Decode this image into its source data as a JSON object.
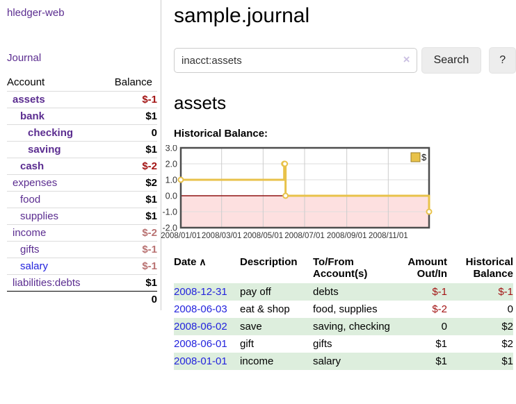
{
  "app": {
    "title": "hledger-web",
    "nav_journal": "Journal"
  },
  "sidebar": {
    "headers": {
      "account": "Account",
      "balance": "Balance"
    },
    "accounts": [
      {
        "name": "assets",
        "indent": 1,
        "bold": true,
        "balance": "$-1",
        "balance_style": "neg-strong"
      },
      {
        "name": "bank",
        "indent": 2,
        "bold": true,
        "balance": "$1",
        "balance_style": "pos"
      },
      {
        "name": "checking",
        "indent": 3,
        "bold": true,
        "balance": "0",
        "balance_style": "pos"
      },
      {
        "name": "saving",
        "indent": 3,
        "bold": true,
        "balance": "$1",
        "balance_style": "pos"
      },
      {
        "name": "cash",
        "indent": 2,
        "bold": true,
        "balance": "$-2",
        "balance_style": "neg-strong"
      },
      {
        "name": "expenses",
        "indent": 1,
        "bold": false,
        "balance": "$2",
        "balance_style": "pos"
      },
      {
        "name": "food",
        "indent": 2,
        "bold": false,
        "balance": "$1",
        "balance_style": "pos"
      },
      {
        "name": "supplies",
        "indent": 2,
        "bold": false,
        "balance": "$1",
        "balance_style": "pos"
      },
      {
        "name": "income",
        "indent": 1,
        "bold": false,
        "balance": "$-2",
        "balance_style": "neg-soft"
      },
      {
        "name": "gifts",
        "indent": 2,
        "bold": false,
        "balance": "$-1",
        "balance_style": "neg-soft"
      },
      {
        "name": "salary",
        "indent": 2,
        "bold": false,
        "link_style": "unvisited",
        "balance": "$-1",
        "balance_style": "neg-soft"
      },
      {
        "name": "liabilities:debts",
        "indent": 1,
        "bold": false,
        "balance": "$1",
        "balance_style": "pos"
      }
    ],
    "total": "0"
  },
  "header": {
    "title": "sample.journal"
  },
  "search": {
    "value": "inacct:assets",
    "clear_icon": "×",
    "button_label": "Search",
    "help_label": "?"
  },
  "account_page": {
    "heading": "assets",
    "chart_label": "Historical Balance:"
  },
  "chart_data": {
    "type": "line",
    "title": "Historical Balance:",
    "legend_position": "top-right",
    "grid": true,
    "xlim": [
      "2008-01-01",
      "2008-12-31"
    ],
    "ylim": [
      -2,
      3
    ],
    "y_ticks": [
      3,
      2,
      1,
      0,
      -1,
      -2
    ],
    "x_ticks": [
      "2008/01/01",
      "2008/03/01",
      "2008/05/01",
      "2008/07/01",
      "2008/09/01",
      "2008/11/01"
    ],
    "series": [
      {
        "name": "$",
        "color": "#e8c24a",
        "points": [
          [
            "2008-01-01",
            1
          ],
          [
            "2008-06-01",
            2
          ],
          [
            "2008-06-02",
            2
          ],
          [
            "2008-06-03",
            0
          ],
          [
            "2008-12-31",
            -1
          ]
        ]
      }
    ],
    "colors": {
      "negative_region": "#fde0e0",
      "zero_line": "#8e1313",
      "grid_h": "#dedede",
      "grid_v": "#cccccc",
      "border": "#4d4d4d"
    }
  },
  "register": {
    "headers": [
      {
        "line1": "Date",
        "line2": "",
        "align": "left",
        "cls": "c-date",
        "sortable": true,
        "sort_icon": "∧"
      },
      {
        "line1": "Description",
        "line2": "",
        "align": "left",
        "cls": "c-desc",
        "sortable": false
      },
      {
        "line1": "To/From",
        "line2": "Account(s)",
        "align": "left",
        "cls": "c-accts",
        "sortable": false
      },
      {
        "line1": "Amount",
        "line2": "Out/In",
        "align": "right",
        "cls": "c-amt",
        "sortable": false
      },
      {
        "line1": "Historical",
        "line2": "Balance",
        "align": "right",
        "cls": "c-bal",
        "sortable": false
      }
    ],
    "rows": [
      {
        "date": "2008-12-31",
        "description": "pay off",
        "accounts": "debts",
        "amount": "$-1",
        "amount_neg": true,
        "balance": "$-1",
        "balance_neg": true
      },
      {
        "date": "2008-06-03",
        "description": "eat & shop",
        "accounts": "food, supplies",
        "amount": "$-2",
        "amount_neg": true,
        "balance": "0",
        "balance_neg": false
      },
      {
        "date": "2008-06-02",
        "description": "save",
        "accounts": "saving, checking",
        "amount": "0",
        "amount_neg": false,
        "balance": "$2",
        "balance_neg": false
      },
      {
        "date": "2008-06-01",
        "description": "gift",
        "accounts": "gifts",
        "amount": "$1",
        "amount_neg": false,
        "balance": "$2",
        "balance_neg": false
      },
      {
        "date": "2008-01-01",
        "description": "income",
        "accounts": "salary",
        "amount": "$1",
        "amount_neg": false,
        "balance": "$1",
        "balance_neg": false
      }
    ]
  }
}
